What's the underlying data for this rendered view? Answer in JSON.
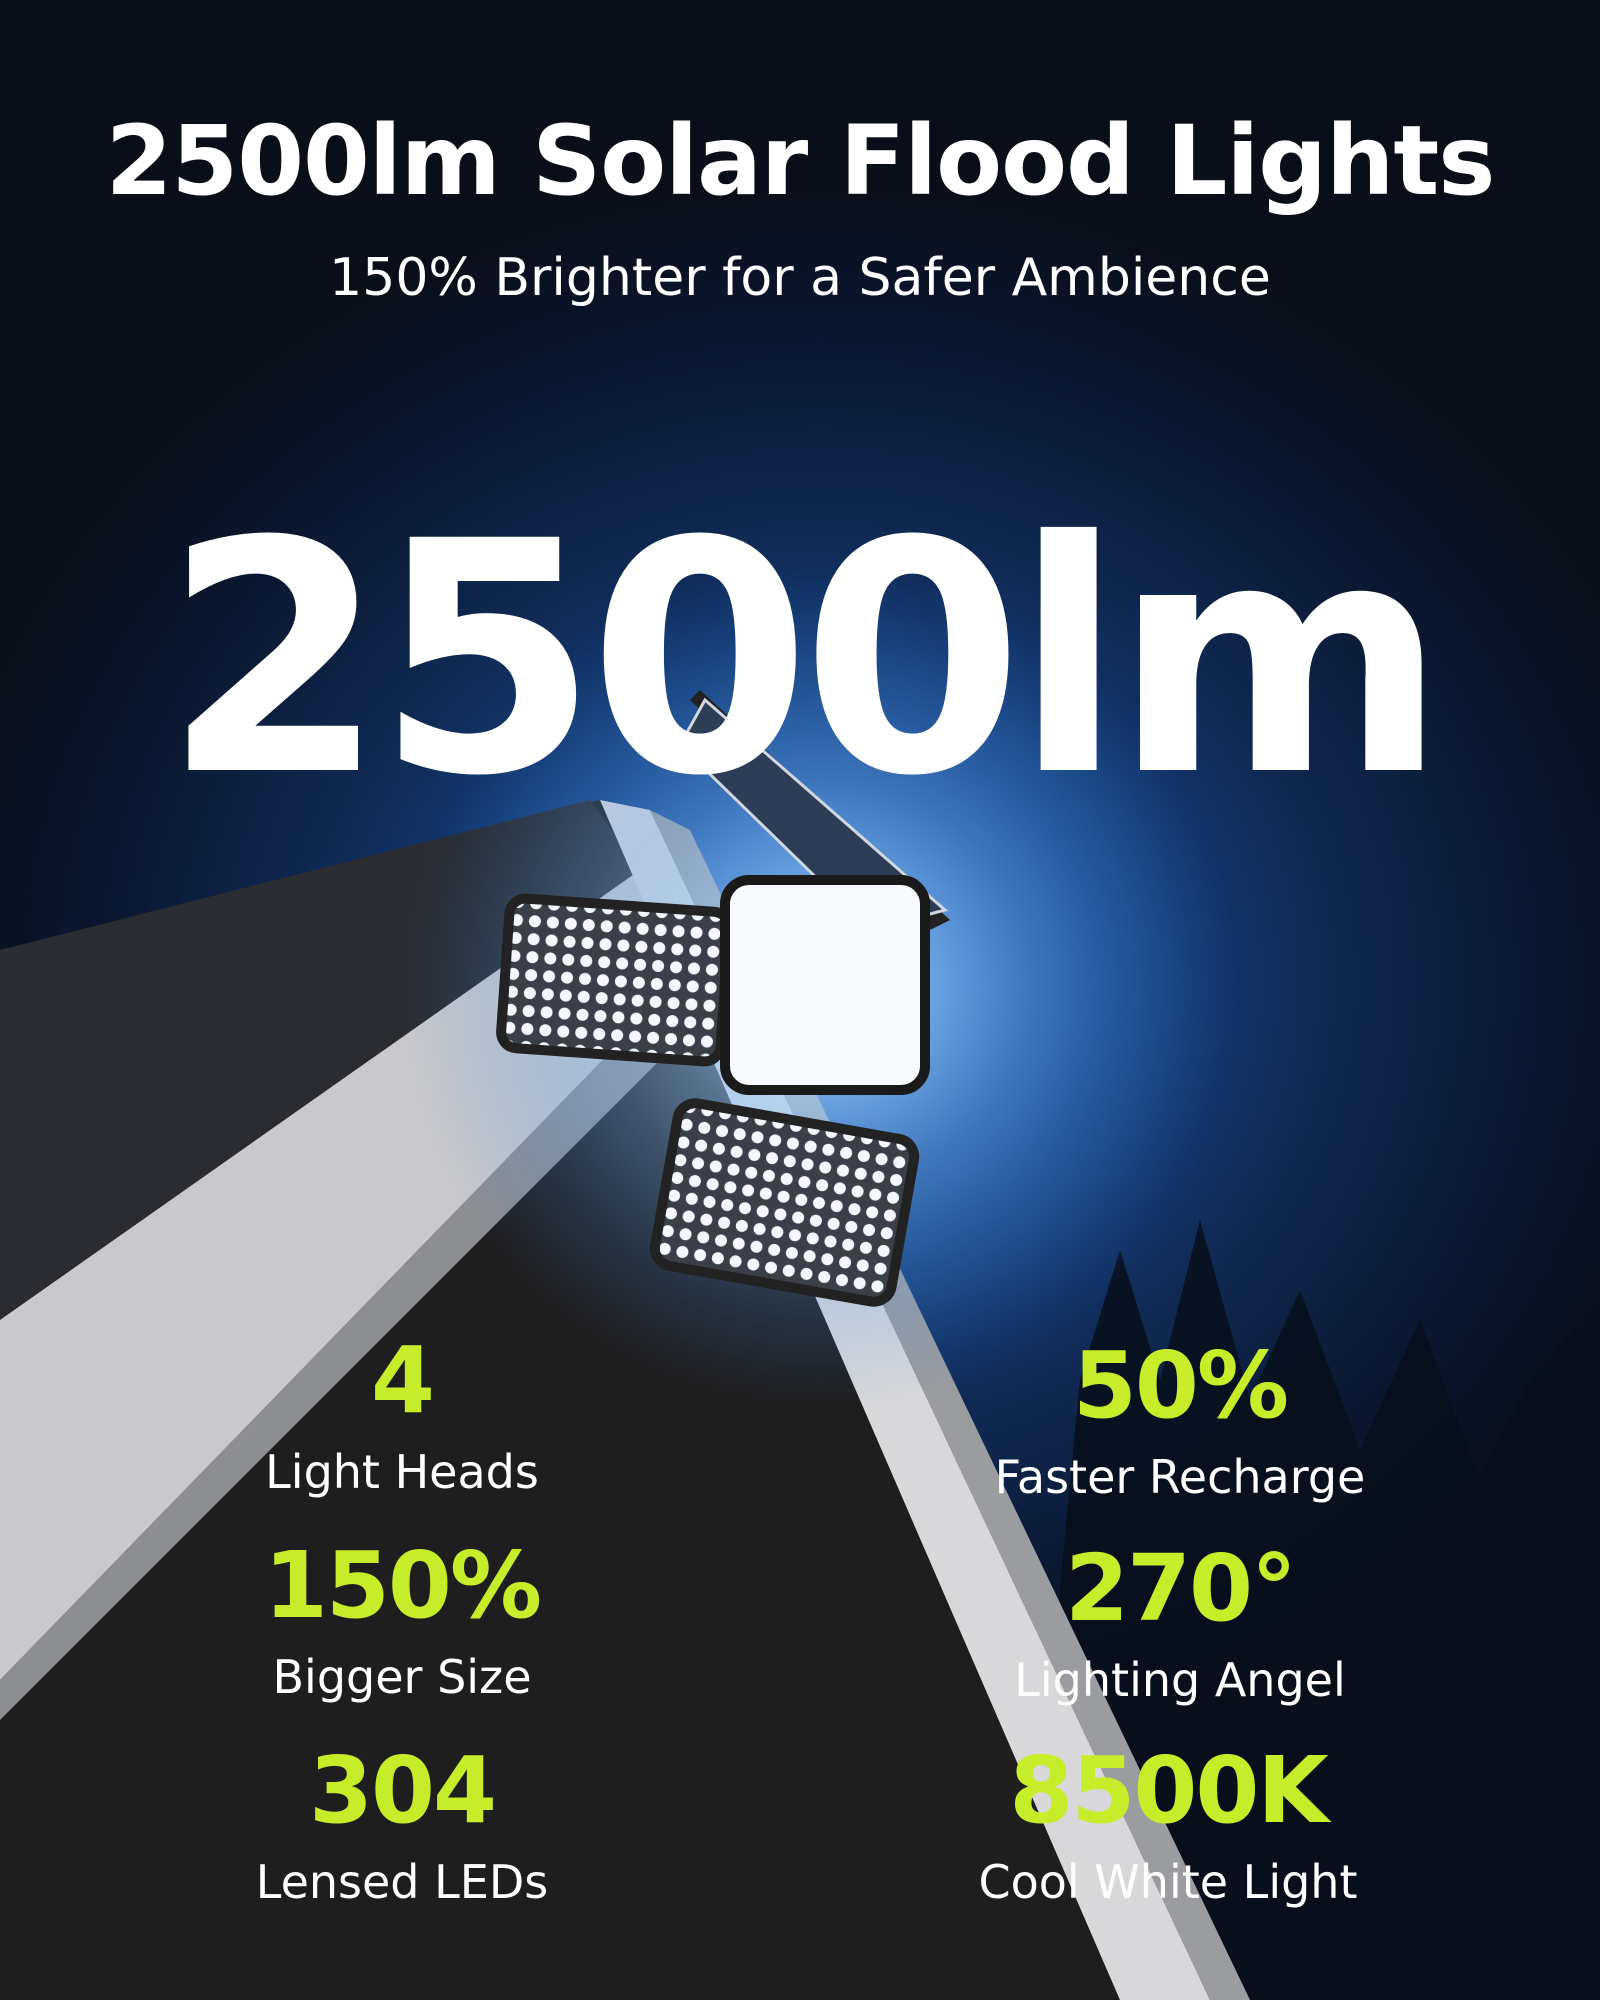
{
  "header": {
    "title": "2500lm Solar Flood Lights",
    "subtitle": "150% Brighter for a Safer Ambience"
  },
  "hero": {
    "value": "2500lm"
  },
  "colors": {
    "accent": "#c6ec2a",
    "background": "#0b1730",
    "glow": "#2a78d8"
  },
  "stats": [
    {
      "value": "4",
      "label": "Light Heads"
    },
    {
      "value": "50%",
      "label": "Faster Recharge"
    },
    {
      "value": "150%",
      "label": "Bigger Size"
    },
    {
      "value": "270°",
      "label": "Lighting Angel"
    },
    {
      "value": "304",
      "label": "Lensed LEDs"
    },
    {
      "value": "8500K",
      "label": "Cool White Light"
    }
  ]
}
